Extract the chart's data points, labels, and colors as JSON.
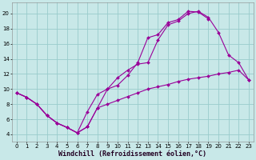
{
  "bg_color": "#c8e8e8",
  "line_color": "#990099",
  "grid_color": "#99cccc",
  "xlabel": "Windchill (Refroidissement éolien,°C)",
  "xlim": [
    -0.5,
    23.5
  ],
  "ylim": [
    3.0,
    21.5
  ],
  "yticks": [
    4,
    6,
    8,
    10,
    12,
    14,
    16,
    18,
    20
  ],
  "xticks": [
    0,
    1,
    2,
    3,
    4,
    5,
    6,
    7,
    8,
    9,
    10,
    11,
    12,
    13,
    14,
    15,
    16,
    17,
    18,
    19,
    20,
    21,
    22,
    23
  ],
  "series1_x": [
    0,
    1,
    2,
    3,
    4,
    5,
    6,
    7,
    8,
    9,
    10,
    11,
    12,
    13,
    14,
    15,
    16,
    17,
    18,
    19,
    20,
    21,
    22,
    23
  ],
  "series1_y": [
    9.5,
    8.9,
    8.0,
    6.5,
    5.5,
    4.9,
    4.2,
    5.0,
    7.5,
    8.0,
    8.5,
    9.0,
    9.5,
    10.0,
    10.3,
    10.6,
    11.0,
    11.3,
    11.5,
    11.7,
    12.0,
    12.2,
    12.5,
    11.2
  ],
  "series2_x": [
    0,
    1,
    2,
    3,
    4,
    5,
    6,
    7,
    8,
    9,
    10,
    11,
    12,
    13,
    14,
    15,
    16,
    17,
    18,
    19,
    20,
    21,
    22,
    23
  ],
  "series2_y": [
    9.5,
    8.9,
    8.0,
    6.5,
    5.5,
    4.9,
    4.2,
    5.0,
    7.5,
    10.0,
    11.5,
    12.5,
    13.3,
    13.5,
    16.5,
    18.5,
    19.0,
    20.0,
    20.3,
    19.5,
    17.5,
    14.5,
    13.5,
    11.2
  ],
  "series3_x": [
    0,
    1,
    2,
    3,
    4,
    5,
    6,
    7,
    8,
    9,
    10,
    11,
    12,
    13,
    14,
    15,
    16,
    17,
    18,
    19
  ],
  "series3_y": [
    9.5,
    8.9,
    8.0,
    6.5,
    5.5,
    4.9,
    4.2,
    7.0,
    9.3,
    10.0,
    10.5,
    11.8,
    13.5,
    16.8,
    17.2,
    18.8,
    19.2,
    20.3,
    20.2,
    19.3
  ]
}
